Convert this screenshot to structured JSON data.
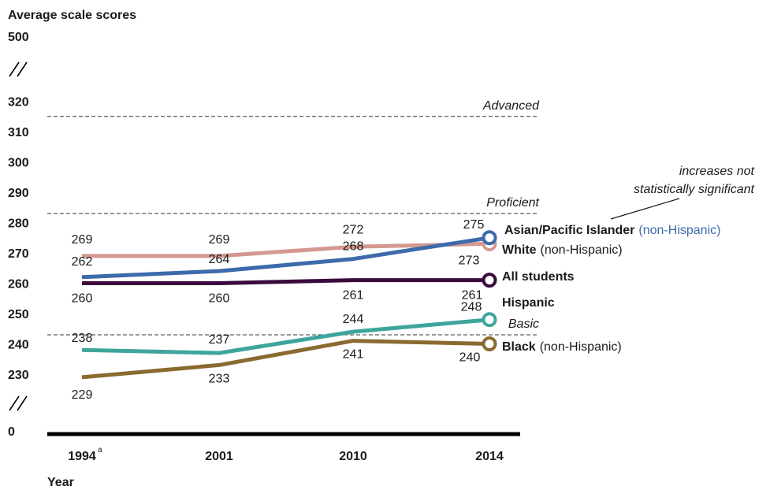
{
  "chart_data": {
    "type": "line",
    "ylabel": "Average scale scores",
    "xlabel": "Year",
    "x": [
      "1994",
      "2001",
      "2010",
      "2014"
    ],
    "x_superscript": {
      "1994": "a"
    },
    "yticks": [
      "500",
      "320",
      "310",
      "300",
      "290",
      "280",
      "270",
      "260",
      "250",
      "240",
      "230",
      "0"
    ],
    "ylim": [
      225,
      325
    ],
    "axis_breaks": true,
    "grid": false,
    "achievement_levels": [
      {
        "name": "Advanced",
        "value": 315
      },
      {
        "name": "Proficient",
        "value": 283
      },
      {
        "name": "Basic",
        "value": 243
      }
    ],
    "series": [
      {
        "name": "Asian/Pacific Islander",
        "note": "(non-Hispanic)",
        "color": "#3d6aab",
        "values": [
          262,
          264,
          268,
          275
        ],
        "name_color": "#3d6aab"
      },
      {
        "name": "White",
        "note": "(non-Hispanic)",
        "color": "#d49891",
        "values": [
          269,
          269,
          272,
          273
        ],
        "name_color": "#1a1a1a"
      },
      {
        "name": "All students",
        "note": "",
        "color": "#3b0a3d",
        "values": [
          260,
          260,
          261,
          261
        ],
        "name_color": "#3b0a3d"
      },
      {
        "name": "Hispanic",
        "note": "",
        "color": "#3fa59c",
        "values": [
          238,
          237,
          244,
          248
        ],
        "name_color": "#1a1a1a"
      },
      {
        "name": "Black",
        "note": "(non-Hispanic)",
        "color": "#8b6a2f",
        "values": [
          229,
          233,
          241,
          240
        ],
        "name_color": "#1a1a1a"
      }
    ],
    "annotation": {
      "line1": "increases not",
      "line2": "statistically significant",
      "color": "#3d6aab"
    }
  }
}
